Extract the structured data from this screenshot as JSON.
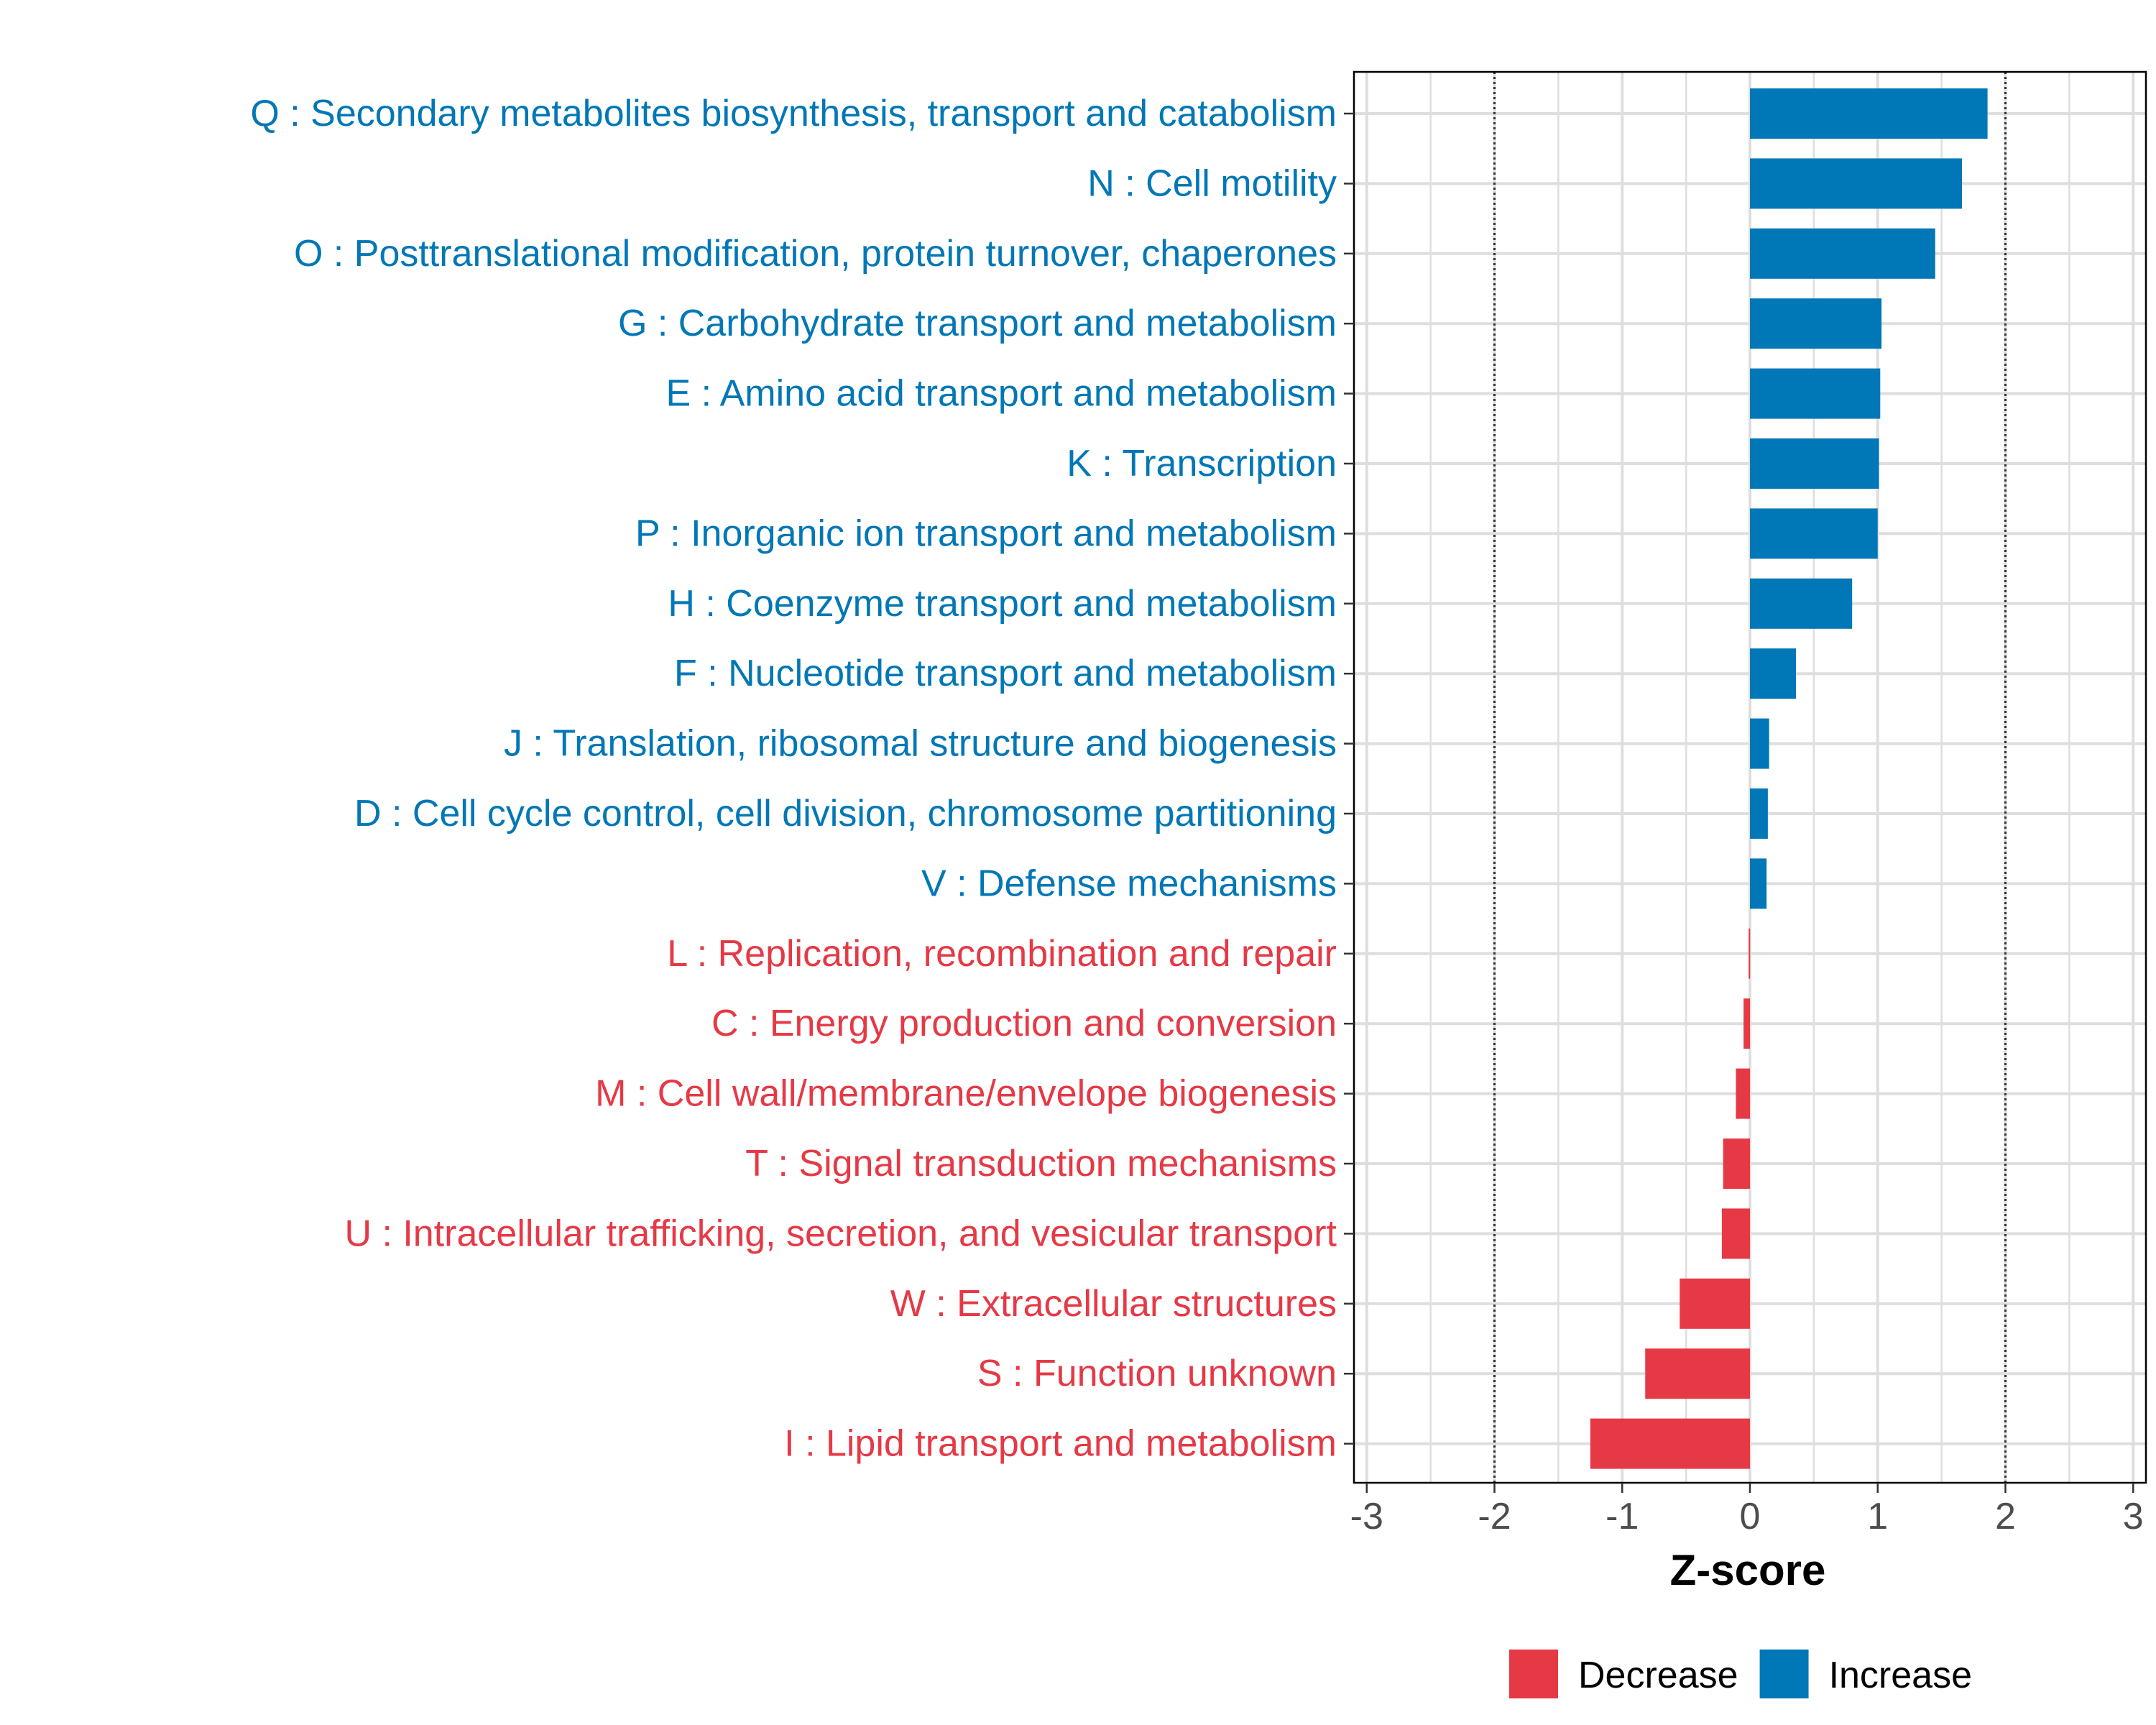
{
  "chart_data": {
    "type": "bar",
    "orientation": "horizontal",
    "xlabel": "Z-score",
    "xlim": [
      -3.1,
      3.1
    ],
    "xticks": [
      -3,
      -2,
      -1,
      0,
      1,
      2,
      3
    ],
    "xtick_labels": [
      "-3",
      "-2",
      "-1",
      "0",
      "1",
      "2",
      "3"
    ],
    "reference_lines": [
      -2,
      2
    ],
    "grid": true,
    "legend_position": "bottom",
    "legend": [
      {
        "label": "Decrease",
        "color": "#E63946"
      },
      {
        "label": "Increase",
        "color": "#0077B6"
      }
    ],
    "categories": [
      "Q : Secondary metabolites biosynthesis, transport and catabolism",
      "N : Cell motility",
      "O : Posttranslational modification, protein turnover, chaperones",
      "G : Carbohydrate transport and metabolism",
      "E : Amino acid transport and metabolism",
      "K : Transcription",
      "P : Inorganic ion transport and metabolism",
      "H : Coenzyme transport and metabolism",
      "F : Nucleotide transport and metabolism",
      "J : Translation, ribosomal structure and biogenesis",
      "D : Cell cycle control, cell division, chromosome partitioning",
      "V : Defense mechanisms",
      "L : Replication, recombination and repair",
      "C : Energy production and conversion",
      "M : Cell wall/membrane/envelope biogenesis",
      "T : Signal transduction mechanisms",
      "U : Intracellular trafficking, secretion, and vesicular transport",
      "W : Extracellular structures",
      "S : Function unknown",
      "I : Lipid transport and metabolism"
    ],
    "values": [
      1.86,
      1.66,
      1.45,
      1.03,
      1.02,
      1.01,
      1.0,
      0.8,
      0.36,
      0.15,
      0.14,
      0.13,
      -0.01,
      -0.05,
      -0.11,
      -0.21,
      -0.22,
      -0.55,
      -0.82,
      -1.25
    ],
    "groups": [
      "Increase",
      "Increase",
      "Increase",
      "Increase",
      "Increase",
      "Increase",
      "Increase",
      "Increase",
      "Increase",
      "Increase",
      "Increase",
      "Increase",
      "Decrease",
      "Decrease",
      "Decrease",
      "Decrease",
      "Decrease",
      "Decrease",
      "Decrease",
      "Decrease"
    ]
  }
}
